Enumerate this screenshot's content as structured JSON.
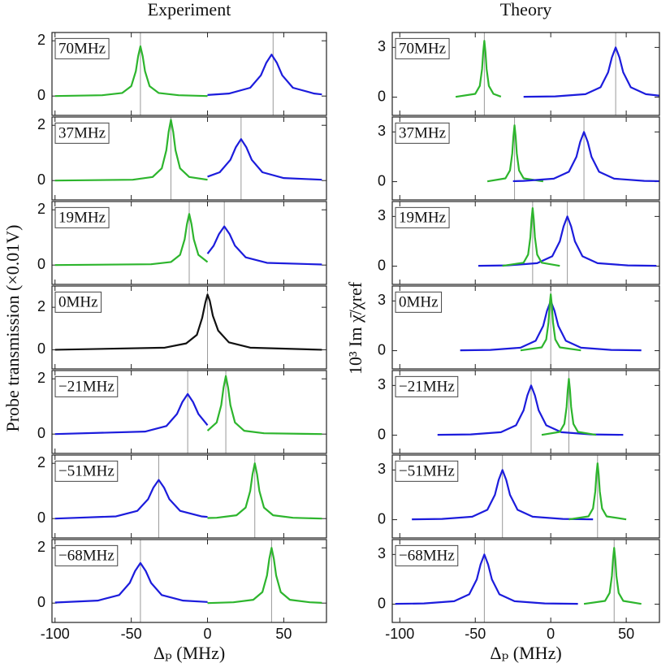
{
  "chart_data": [
    {
      "type": "line",
      "title": "Experiment",
      "label": "70MHz",
      "xlim": [
        -102,
        78
      ],
      "ylim": [
        -0.7,
        2.3
      ],
      "xticks": [
        -100,
        -50,
        0,
        50
      ],
      "yticks": [
        0,
        2
      ],
      "vlines": [
        -44,
        43
      ],
      "series": [
        {
          "color": "#2db52d",
          "x": [
            -100,
            -69,
            -56,
            -50,
            -47,
            -45.5,
            -44,
            -42.5,
            -41,
            -38,
            -32,
            -19,
            0
          ],
          "values": [
            0,
            0.03,
            0.11,
            0.36,
            0.9,
            1.44,
            1.8,
            1.44,
            0.9,
            0.36,
            0.11,
            0.03,
            0
          ]
        },
        {
          "color": "#1c1cdc",
          "x": [
            0,
            14,
            28,
            35,
            38.5,
            42,
            45.5,
            49,
            56,
            70,
            75
          ],
          "values": [
            0.04,
            0.09,
            0.3,
            0.75,
            1.2,
            1.5,
            1.2,
            0.75,
            0.3,
            0.09,
            0.06
          ]
        }
      ]
    },
    {
      "type": "line",
      "label": "37MHz",
      "xlim": [
        -102,
        78
      ],
      "ylim": [
        -0.7,
        2.3
      ],
      "xticks": [
        -100,
        -50,
        0,
        50
      ],
      "yticks": [
        0,
        2
      ],
      "vlines": [
        -24,
        22
      ],
      "series": [
        {
          "color": "#2db52d",
          "x": [
            -100,
            -49,
            -36,
            -30,
            -27,
            -25.5,
            -24,
            -22.5,
            -21,
            -18,
            -12,
            0
          ],
          "values": [
            0,
            0.03,
            0.13,
            0.44,
            1.1,
            1.76,
            2.2,
            1.76,
            1.1,
            0.44,
            0.13,
            0.03
          ]
        },
        {
          "color": "#1c1cdc",
          "x": [
            0,
            8,
            15,
            18.5,
            22,
            25.5,
            29,
            36,
            50,
            75
          ],
          "values": [
            0.14,
            0.3,
            0.75,
            1.2,
            1.5,
            1.2,
            0.75,
            0.3,
            0.09,
            0.03
          ]
        }
      ]
    },
    {
      "type": "line",
      "label": "19MHz",
      "xlim": [
        -102,
        78
      ],
      "ylim": [
        -0.7,
        2.3
      ],
      "xticks": [
        -100,
        -50,
        0,
        50
      ],
      "yticks": [
        0,
        2
      ],
      "vlines": [
        -12,
        11
      ],
      "series": [
        {
          "color": "#2db52d",
          "x": [
            -100,
            -37,
            -24,
            -18,
            -15,
            -13.5,
            -12,
            -10.5,
            -9,
            -6,
            0
          ],
          "values": [
            0,
            0.03,
            0.11,
            0.37,
            0.93,
            1.48,
            1.85,
            1.48,
            0.93,
            0.37,
            0.11
          ]
        },
        {
          "color": "#1c1cdc",
          "x": [
            0,
            4,
            7.5,
            11,
            14.5,
            18,
            25,
            39,
            75
          ],
          "values": [
            0.41,
            0.7,
            1.12,
            1.4,
            1.12,
            0.7,
            0.28,
            0.08,
            0.02
          ]
        }
      ]
    },
    {
      "type": "line",
      "label": "0MHz",
      "xlim": [
        -102,
        78
      ],
      "ylim": [
        -0.9,
        3.0
      ],
      "xticks": [
        -100,
        -50,
        0,
        50
      ],
      "yticks": [
        0,
        2
      ],
      "vlines": [
        0
      ],
      "series": [
        {
          "color": "#111111",
          "x": [
            -100,
            -28,
            -14,
            -7,
            -3.5,
            -1.5,
            0,
            1.5,
            3.5,
            7,
            14,
            28,
            75
          ],
          "values": [
            0,
            0.1,
            0.3,
            0.7,
            1.5,
            2.2,
            2.6,
            2.3,
            1.6,
            0.9,
            0.35,
            0.1,
            0
          ]
        }
      ]
    },
    {
      "type": "line",
      "label": "−21MHz",
      "xlim": [
        -102,
        78
      ],
      "ylim": [
        -0.7,
        2.3
      ],
      "xticks": [
        -100,
        -50,
        0,
        50
      ],
      "yticks": [
        0,
        2
      ],
      "vlines": [
        -13,
        12
      ],
      "series": [
        {
          "color": "#1c1cdc",
          "x": [
            -100,
            -41,
            -27,
            -20,
            -16.5,
            -13,
            -9.5,
            -6,
            0
          ],
          "values": [
            0,
            0.09,
            0.29,
            0.73,
            1.16,
            1.45,
            1.16,
            0.73,
            0.32
          ]
        },
        {
          "color": "#2db52d",
          "x": [
            0,
            6,
            9,
            10.5,
            12,
            13.5,
            15,
            18,
            24,
            37,
            75
          ],
          "values": [
            0.12,
            0.42,
            1.05,
            1.68,
            2.1,
            1.68,
            1.05,
            0.42,
            0.12,
            0.03,
            0
          ]
        }
      ]
    },
    {
      "type": "line",
      "label": "−51MHz",
      "xlim": [
        -102,
        78
      ],
      "ylim": [
        -0.7,
        2.3
      ],
      "xticks": [
        -100,
        -50,
        0,
        50
      ],
      "yticks": [
        0,
        2
      ],
      "vlines": [
        -32,
        31
      ],
      "series": [
        {
          "color": "#1c1cdc",
          "x": [
            -100,
            -60,
            -46,
            -39,
            -35.5,
            -32,
            -28.5,
            -25,
            -18,
            -4,
            0
          ],
          "values": [
            0,
            0.08,
            0.28,
            0.7,
            1.12,
            1.4,
            1.12,
            0.7,
            0.28,
            0.08,
            0.06
          ]
        },
        {
          "color": "#2db52d",
          "x": [
            0,
            6,
            19,
            25,
            28,
            29.5,
            31,
            32.5,
            34,
            37,
            43,
            56,
            75
          ],
          "values": [
            0.02,
            0.03,
            0.12,
            0.4,
            1,
            1.6,
            2,
            1.6,
            1,
            0.4,
            0.12,
            0.03,
            0
          ]
        }
      ]
    },
    {
      "type": "line",
      "label": "−68MHz",
      "xlabel": "Δₚ (MHz)",
      "xlim": [
        -102,
        78
      ],
      "ylim": [
        -0.7,
        2.3
      ],
      "xticks": [
        -100,
        -50,
        0,
        50
      ],
      "yticks": [
        0,
        2
      ],
      "vlines": [
        -44,
        42
      ],
      "series": [
        {
          "color": "#1c1cdc",
          "x": [
            -100,
            -72,
            -58,
            -51,
            -47.5,
            -44,
            -40.5,
            -37,
            -30,
            -16,
            0
          ],
          "values": [
            0.02,
            0.09,
            0.29,
            0.73,
            1.16,
            1.45,
            1.16,
            0.73,
            0.29,
            0.09,
            0.04
          ]
        },
        {
          "color": "#2db52d",
          "x": [
            0,
            17,
            30,
            36,
            39,
            40.5,
            42,
            43.5,
            45,
            48,
            54,
            67,
            75
          ],
          "values": [
            0,
            0.03,
            0.12,
            0.4,
            1,
            1.6,
            2,
            1.6,
            1,
            0.4,
            0.12,
            0.03,
            0.01
          ]
        }
      ]
    },
    {
      "type": "line",
      "title": "Theory",
      "label": "70MHz",
      "xlim": [
        -105,
        72
      ],
      "ylim": [
        -1.1,
        3.9
      ],
      "xticks": [
        -100,
        -50,
        0,
        50
      ],
      "yticks": [
        0,
        3
      ],
      "vlines": [
        -44,
        43
      ],
      "series": [
        {
          "color": "#2db52d",
          "x": [
            -63,
            -50,
            -47,
            -45.5,
            -44.75,
            -44,
            -43.25,
            -42.5,
            -41,
            -38,
            -33
          ],
          "values": [
            0.02,
            0.2,
            0.68,
            1.7,
            2.72,
            3.4,
            2.72,
            1.7,
            0.68,
            0.2,
            0.03
          ]
        },
        {
          "color": "#1c1cdc",
          "x": [
            -18,
            3,
            23,
            33,
            38,
            40.5,
            43,
            45.5,
            48,
            53,
            63,
            72
          ],
          "values": [
            0.02,
            0.045,
            0.18,
            0.6,
            1.5,
            2.4,
            3,
            2.4,
            1.5,
            0.6,
            0.18,
            0.09
          ]
        }
      ]
    },
    {
      "type": "line",
      "label": "37MHz",
      "xlim": [
        -105,
        72
      ],
      "ylim": [
        -1.1,
        3.9
      ],
      "xticks": [
        -100,
        -50,
        0,
        50
      ],
      "yticks": [
        0,
        3
      ],
      "vlines": [
        -24,
        22
      ],
      "series": [
        {
          "color": "#2db52d",
          "x": [
            -42,
            -30,
            -27,
            -25.5,
            -24.75,
            -24,
            -23.25,
            -22.5,
            -21,
            -18,
            -5
          ],
          "values": [
            0.02,
            0.2,
            0.68,
            1.7,
            2.72,
            3.4,
            2.72,
            1.7,
            0.68,
            0.2,
            0.02
          ]
        },
        {
          "color": "#1c1cdc",
          "x": [
            -25,
            -18,
            2,
            12,
            17,
            19.5,
            22,
            24.5,
            27,
            32,
            42,
            62,
            72
          ],
          "values": [
            0.03,
            0.045,
            0.18,
            0.6,
            1.5,
            2.4,
            3,
            2.4,
            1.5,
            0.6,
            0.18,
            0.045,
            0.03
          ]
        }
      ]
    },
    {
      "type": "line",
      "label": "19MHz",
      "xlim": [
        -105,
        72
      ],
      "ylim": [
        -1.1,
        3.9
      ],
      "xticks": [
        -100,
        -50,
        0,
        50
      ],
      "yticks": [
        0,
        3
      ],
      "vlines": [
        -12,
        11
      ],
      "series": [
        {
          "color": "#1c1cdc",
          "x": [
            -48,
            -29,
            -9,
            1,
            6,
            8.5,
            11,
            13.5,
            16,
            21,
            31,
            51,
            70
          ],
          "values": [
            0.02,
            0.045,
            0.18,
            0.6,
            1.5,
            2.4,
            3,
            2.4,
            1.5,
            0.6,
            0.18,
            0.045,
            0.02
          ]
        },
        {
          "color": "#2db52d",
          "x": [
            -32,
            -18,
            -15,
            -13.5,
            -12.75,
            -12,
            -11.25,
            -10.5,
            -9,
            -6,
            6
          ],
          "values": [
            0.02,
            0.21,
            0.7,
            1.75,
            2.8,
            3.5,
            2.8,
            1.75,
            0.7,
            0.21,
            0.02
          ]
        }
      ]
    },
    {
      "type": "line",
      "label": "0MHz",
      "xlim": [
        -105,
        72
      ],
      "ylim": [
        -1.1,
        3.9
      ],
      "xticks": [
        -100,
        -50,
        0,
        50
      ],
      "yticks": [
        0,
        3
      ],
      "vlines": [
        0
      ],
      "series": [
        {
          "color": "#1c1cdc",
          "x": [
            -60,
            -40,
            -20,
            -10,
            -5,
            -2.5,
            0,
            2.5,
            5,
            10,
            20,
            40,
            60
          ],
          "values": [
            0.02,
            0.045,
            0.18,
            0.6,
            1.5,
            2.4,
            3,
            2.4,
            1.5,
            0.6,
            0.18,
            0.045,
            0.02
          ]
        },
        {
          "color": "#2db52d",
          "x": [
            -20,
            -6,
            -3,
            -1.5,
            -0.75,
            0,
            0.75,
            1.5,
            3,
            6,
            20
          ],
          "values": [
            0.02,
            0.2,
            0.68,
            1.7,
            2.72,
            3.4,
            2.72,
            1.7,
            0.68,
            0.2,
            0.02
          ]
        }
      ]
    },
    {
      "type": "line",
      "label": "−21MHz",
      "xlim": [
        -105,
        72
      ],
      "ylim": [
        -1.1,
        3.9
      ],
      "xticks": [
        -100,
        -50,
        0,
        50
      ],
      "yticks": [
        0,
        3
      ],
      "vlines": [
        -13,
        12
      ],
      "series": [
        {
          "color": "#1c1cdc",
          "x": [
            -75,
            -53,
            -33,
            -23,
            -18,
            -15.5,
            -13,
            -10.5,
            -8,
            -3,
            7,
            27,
            48
          ],
          "values": [
            0.02,
            0.045,
            0.18,
            0.6,
            1.5,
            2.4,
            3,
            2.4,
            1.5,
            0.6,
            0.18,
            0.045,
            0.02
          ]
        },
        {
          "color": "#2db52d",
          "x": [
            -6,
            6,
            9,
            10.5,
            11.25,
            12,
            12.75,
            13.5,
            15,
            18,
            30
          ],
          "values": [
            0.02,
            0.2,
            0.68,
            1.7,
            2.72,
            3.4,
            2.72,
            1.7,
            0.68,
            0.2,
            0.02
          ]
        }
      ]
    },
    {
      "type": "line",
      "label": "−51MHz",
      "xlim": [
        -105,
        72
      ],
      "ylim": [
        -1.1,
        3.9
      ],
      "xticks": [
        -100,
        -50,
        0,
        50
      ],
      "yticks": [
        0,
        3
      ],
      "vlines": [
        -32,
        31
      ],
      "series": [
        {
          "color": "#1c1cdc",
          "x": [
            -92,
            -72,
            -52,
            -42,
            -37,
            -34.5,
            -32,
            -29.5,
            -27,
            -22,
            -12,
            8,
            28
          ],
          "values": [
            0.02,
            0.045,
            0.18,
            0.6,
            1.5,
            2.4,
            3,
            2.4,
            1.5,
            0.6,
            0.18,
            0.045,
            0.02
          ]
        },
        {
          "color": "#2db52d",
          "x": [
            12,
            25,
            28,
            29.5,
            30.25,
            31,
            31.75,
            32.5,
            34,
            37,
            50
          ],
          "values": [
            0.02,
            0.2,
            0.68,
            1.7,
            2.72,
            3.4,
            2.72,
            1.7,
            0.68,
            0.2,
            0.02
          ]
        }
      ]
    },
    {
      "type": "line",
      "label": "−68MHz",
      "xlabel": "Δₚ (MHz)",
      "xlim": [
        -105,
        72
      ],
      "ylim": [
        -1.1,
        3.9
      ],
      "xticks": [
        -100,
        -50,
        0,
        50
      ],
      "yticks": [
        0,
        3
      ],
      "vlines": [
        -44,
        42
      ],
      "series": [
        {
          "color": "#1c1cdc",
          "x": [
            -103,
            -84,
            -64,
            -54,
            -49,
            -46.5,
            -44,
            -41.5,
            -39,
            -34,
            -24,
            -4,
            18
          ],
          "values": [
            0.02,
            0.045,
            0.18,
            0.6,
            1.5,
            2.4,
            3,
            2.4,
            1.5,
            0.6,
            0.18,
            0.045,
            0.02
          ]
        },
        {
          "color": "#2db52d",
          "x": [
            22,
            36,
            39,
            40.5,
            41.25,
            42,
            42.75,
            43.5,
            45,
            48,
            60
          ],
          "values": [
            0.02,
            0.2,
            0.68,
            1.7,
            2.72,
            3.4,
            2.72,
            1.7,
            0.68,
            0.2,
            0.02
          ]
        }
      ]
    }
  ],
  "figure": {
    "left_ylabel": "Probe transmission (×0.01V)",
    "right_ylabel": "10³ Im χ̄/χref"
  }
}
